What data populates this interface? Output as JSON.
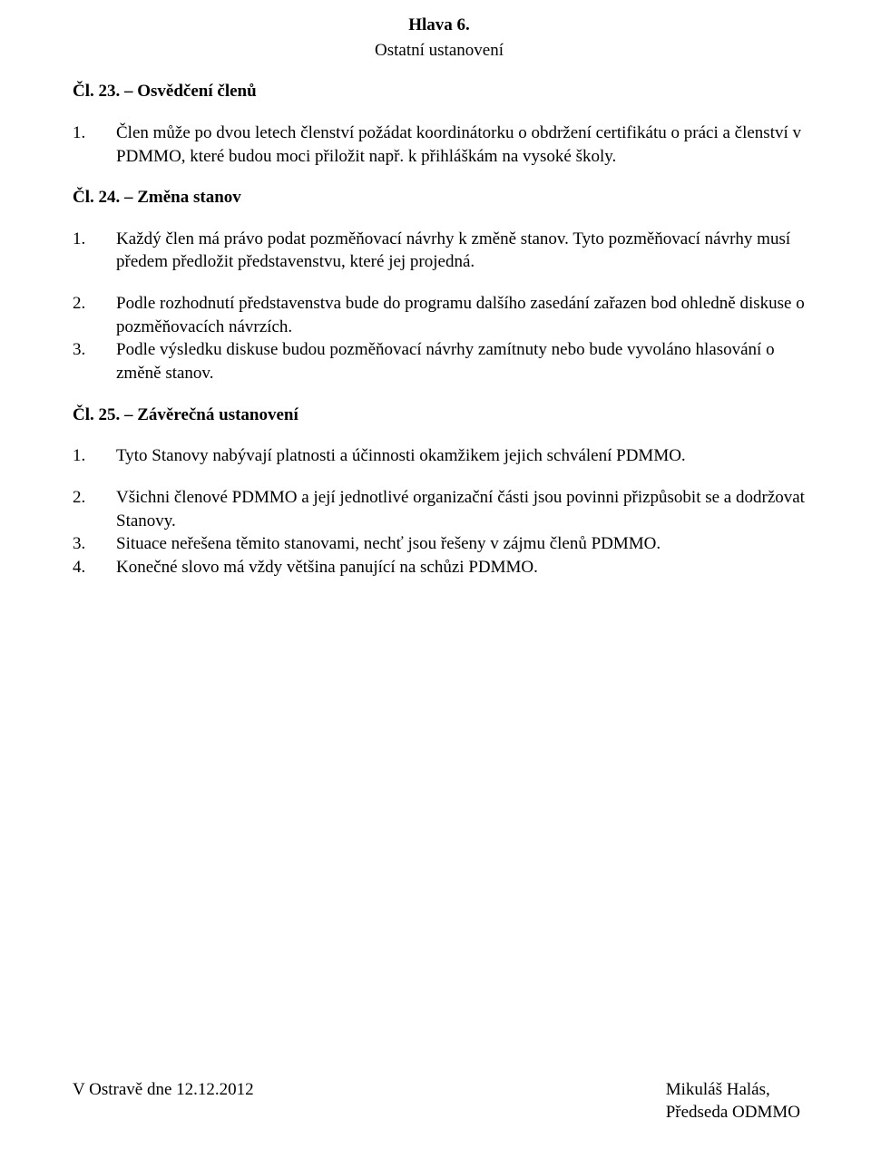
{
  "header": {
    "title": "Hlava 6.",
    "subtitle": "Ostatní ustanovení"
  },
  "article23": {
    "title": "Čl. 23. – Osvědčení členů",
    "items": [
      {
        "num": "1.",
        "text": "Člen může po dvou letech členství požádat koordinátorku o obdržení certifikátu o práci a členství v PDMMO, které budou moci přiložit např. k přihláškám na vysoké školy."
      }
    ]
  },
  "article24": {
    "title": "Čl. 24. – Změna stanov",
    "items": [
      {
        "num": "1.",
        "text": "Každý člen má právo podat pozměňovací návrhy k změně stanov. Tyto pozměňovací návrhy musí předem předložit představenstvu, které jej projedná."
      },
      {
        "num": "2.",
        "text": "Podle rozhodnutí představenstva bude do programu dalšího zasedání zařazen bod ohledně diskuse o pozměňovacích návrzích."
      },
      {
        "num": "3.",
        "text": "Podle výsledku diskuse budou pozměňovací návrhy zamítnuty nebo bude vyvoláno hlasování o změně stanov."
      }
    ]
  },
  "article25": {
    "title": "Čl. 25. – Závěrečná ustanovení",
    "items": [
      {
        "num": "1.",
        "text": "Tyto Stanovy nabývají platnosti a účinnosti okamžikem jejich schválení PDMMO."
      },
      {
        "num": "2.",
        "text": "Všichni členové PDMMO a její jednotlivé organizační části jsou povinni přizpůsobit se a dodržovat Stanovy."
      },
      {
        "num": "3.",
        "text": "Situace neřešena těmito stanovami, nechť jsou řešeny v zájmu členů PDMMO."
      },
      {
        "num": "4.",
        "text": "Konečné slovo má vždy většina panující na schůzi PDMMO."
      }
    ]
  },
  "footer": {
    "place_date": "V Ostravě dne 12.12.2012",
    "name": "Mikuláš Halás,",
    "role": "Předseda ODMMO"
  }
}
